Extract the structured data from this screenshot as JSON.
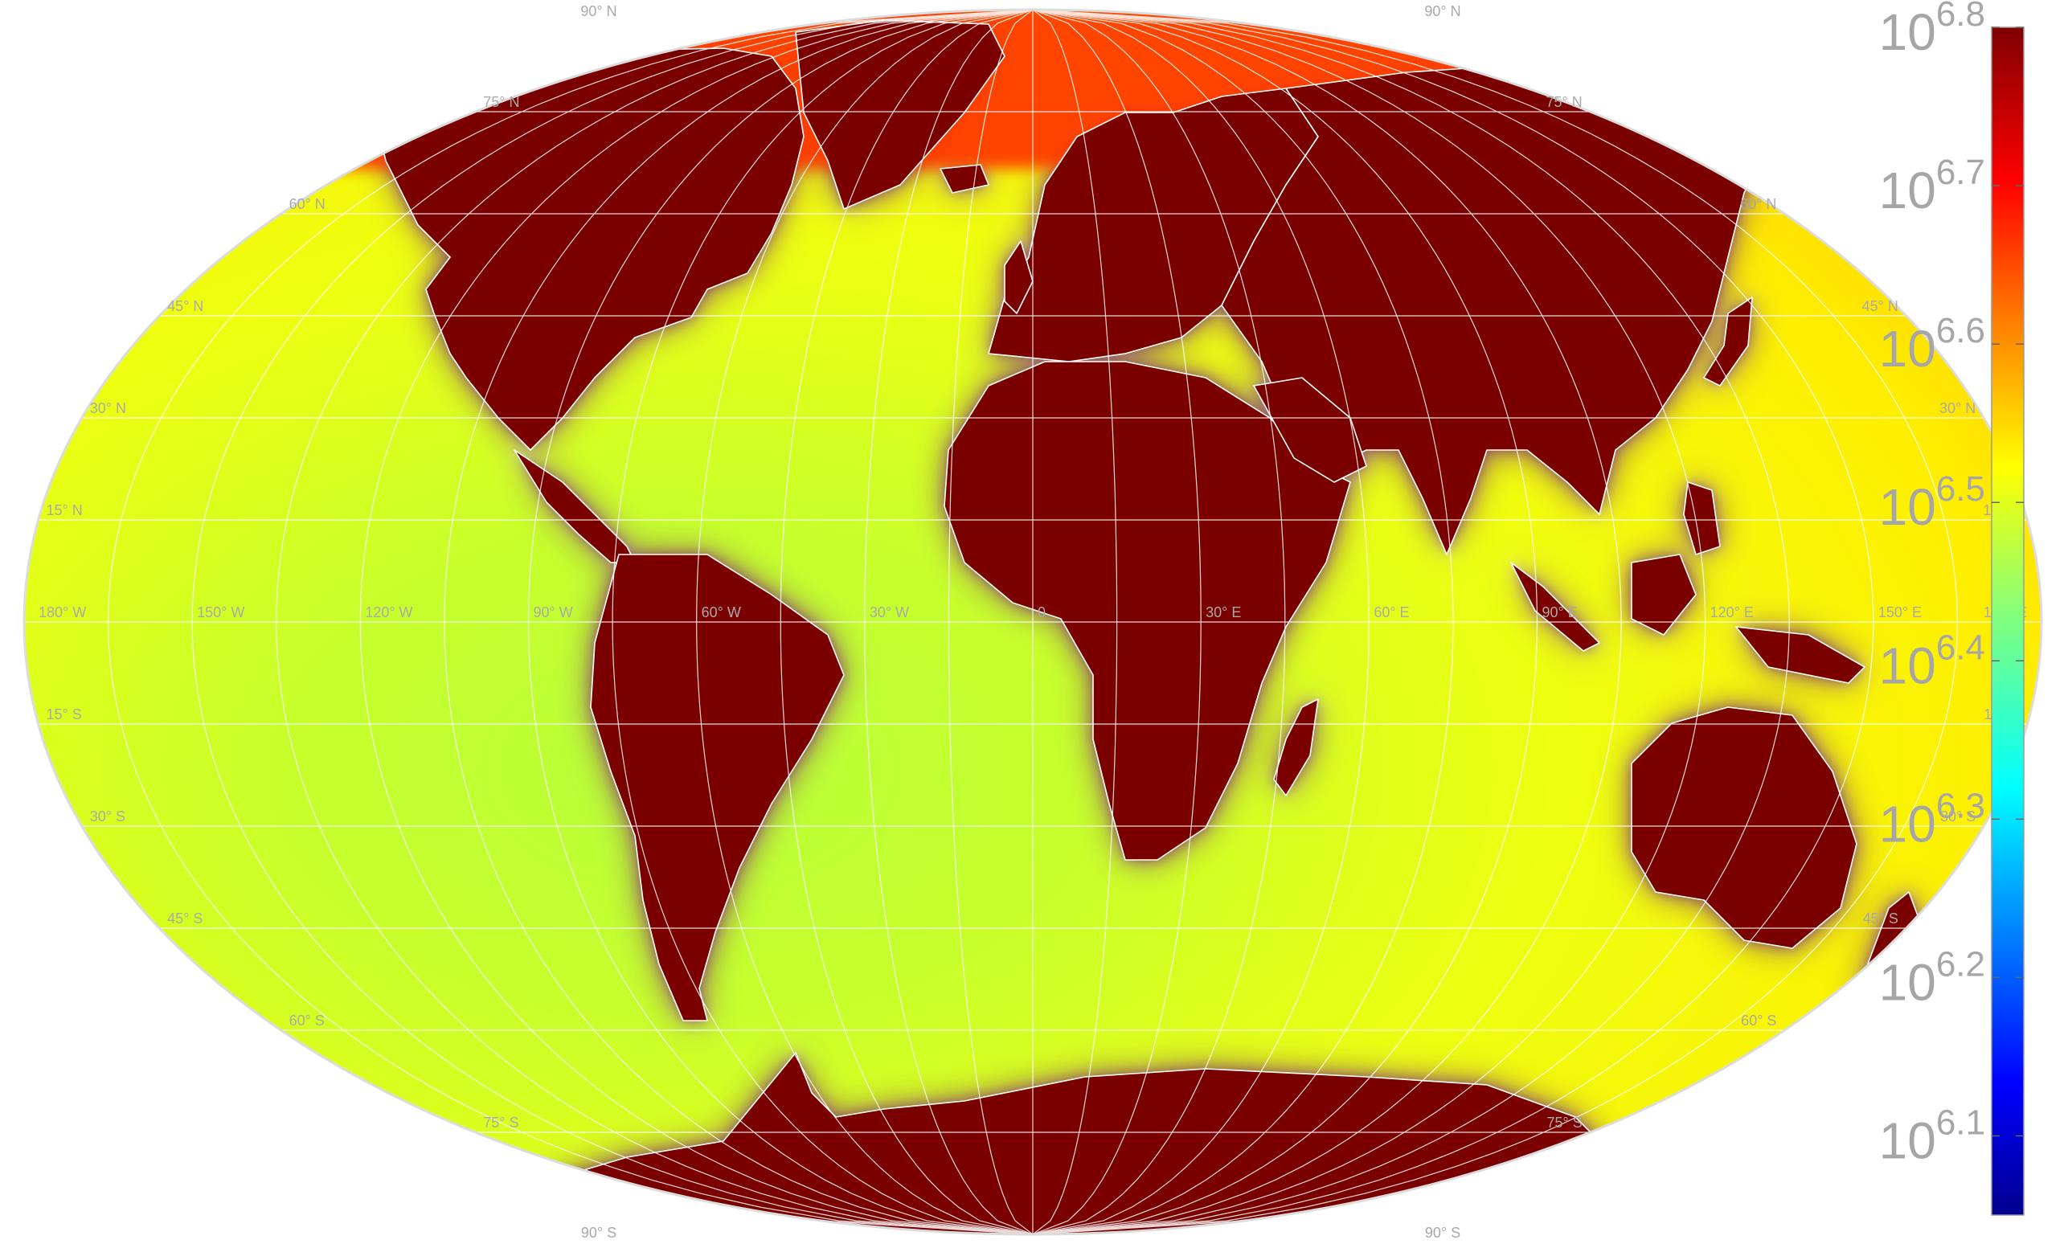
{
  "map": {
    "projection": "robinson-like oval",
    "graticule_step_deg": 15,
    "colors": {
      "land": "#7a0000",
      "coast_outline": "#ffffff",
      "grid": "#ffffff",
      "frame": "#dcdcdc",
      "ocean_open": "#c4ff2e",
      "ocean_mid": "#ffff00",
      "ocean_coastal": "#ffb300",
      "ocean_shelf": "#ff2a00"
    },
    "lat_labels": [
      {
        "text": "90° N",
        "lat": 90
      },
      {
        "text": "75° N",
        "lat": 75
      },
      {
        "text": "60° N",
        "lat": 60
      },
      {
        "text": "45° N",
        "lat": 45
      },
      {
        "text": "30° N",
        "lat": 30
      },
      {
        "text": "15° N",
        "lat": 15
      },
      {
        "text": "15° S",
        "lat": -15
      },
      {
        "text": "30° S",
        "lat": -30
      },
      {
        "text": "45° S",
        "lat": -45
      },
      {
        "text": "60° S",
        "lat": -60
      },
      {
        "text": "75° S",
        "lat": -75
      },
      {
        "text": "90° S",
        "lat": -90
      }
    ],
    "lon_labels": [
      {
        "text": "180° W",
        "lon": -180
      },
      {
        "text": "150° W",
        "lon": -150
      },
      {
        "text": "120° W",
        "lon": -120
      },
      {
        "text": "90° W",
        "lon": -90
      },
      {
        "text": "60° W",
        "lon": -60
      },
      {
        "text": "30° W",
        "lon": -30
      },
      {
        "text": "0",
        "lon": 0
      },
      {
        "text": "30° E",
        "lon": 30
      },
      {
        "text": "60° E",
        "lon": 60
      },
      {
        "text": "90° E",
        "lon": 90
      },
      {
        "text": "120° E",
        "lon": 120
      },
      {
        "text": "150° E",
        "lon": 150
      },
      {
        "text": "180° E",
        "lon": 180
      }
    ]
  },
  "colorbar": {
    "colormap": "jet",
    "scale": "log",
    "range_exponent": [
      6.05,
      6.8
    ],
    "tick_base": "10",
    "ticks": [
      {
        "exp": "6.1",
        "value": 6.1
      },
      {
        "exp": "6.2",
        "value": 6.2
      },
      {
        "exp": "6.3",
        "value": 6.3
      },
      {
        "exp": "6.4",
        "value": 6.4
      },
      {
        "exp": "6.5",
        "value": 6.5
      },
      {
        "exp": "6.6",
        "value": 6.6
      },
      {
        "exp": "6.7",
        "value": 6.7
      },
      {
        "exp": "6.8",
        "value": 6.8
      }
    ]
  }
}
